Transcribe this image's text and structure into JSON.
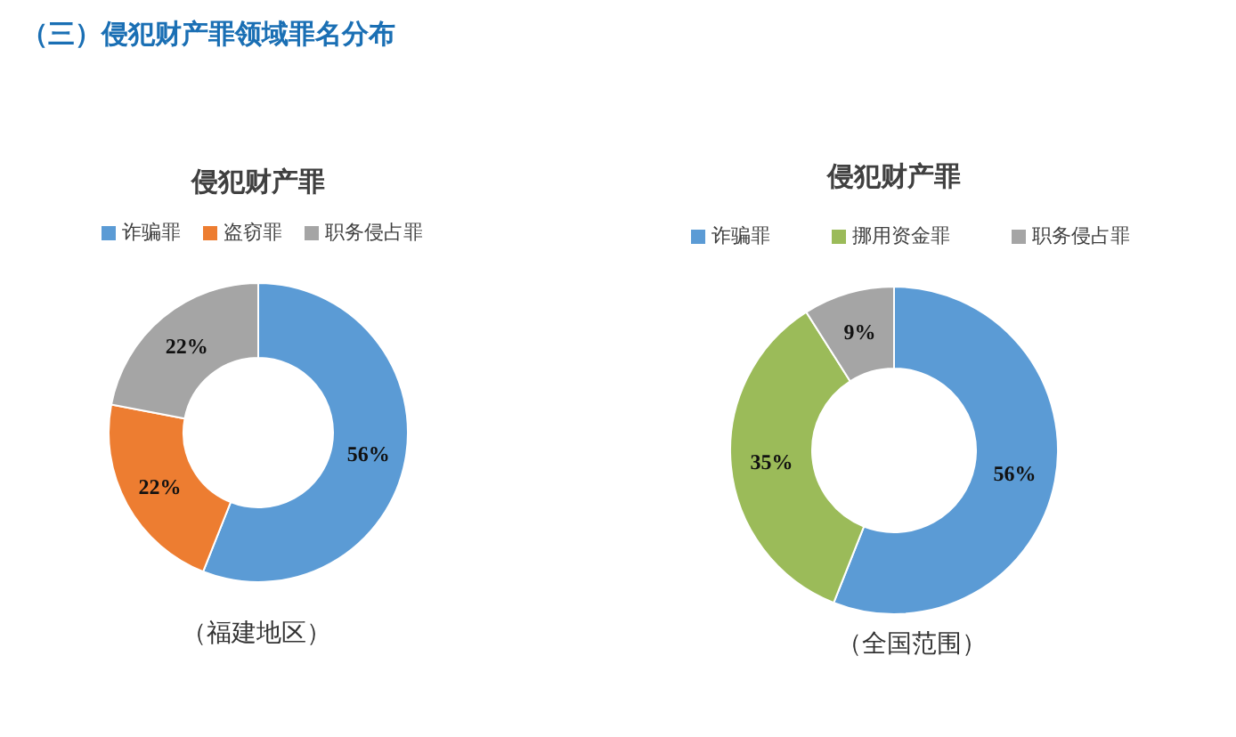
{
  "chart_data": [
    {
      "type": "donut",
      "title": "侵犯财产罪",
      "xlabel": "（福建地区）",
      "annotations": [
        "（三）侵犯财产罪领域罪名分布"
      ],
      "categories": [
        "诈骗罪",
        "盗窃罪",
        "职务侵占罪"
      ],
      "values": [
        56,
        22,
        22
      ],
      "colors": [
        "#5b9bd5",
        "#ed7d31",
        "#a5a5a5"
      ],
      "value_labels": [
        "56%",
        "22%",
        "22%"
      ],
      "legend": "top"
    },
    {
      "type": "donut",
      "title": "侵犯财产罪",
      "xlabel": "（全国范围）",
      "categories": [
        "诈骗罪",
        "挪用资金罪",
        "职务侵占罪"
      ],
      "values": [
        56,
        35,
        9
      ],
      "colors": [
        "#5b9bd5",
        "#9bbb59",
        "#a5a5a5"
      ],
      "value_labels": [
        "56%",
        "35%",
        "9%"
      ],
      "legend": "top"
    }
  ]
}
